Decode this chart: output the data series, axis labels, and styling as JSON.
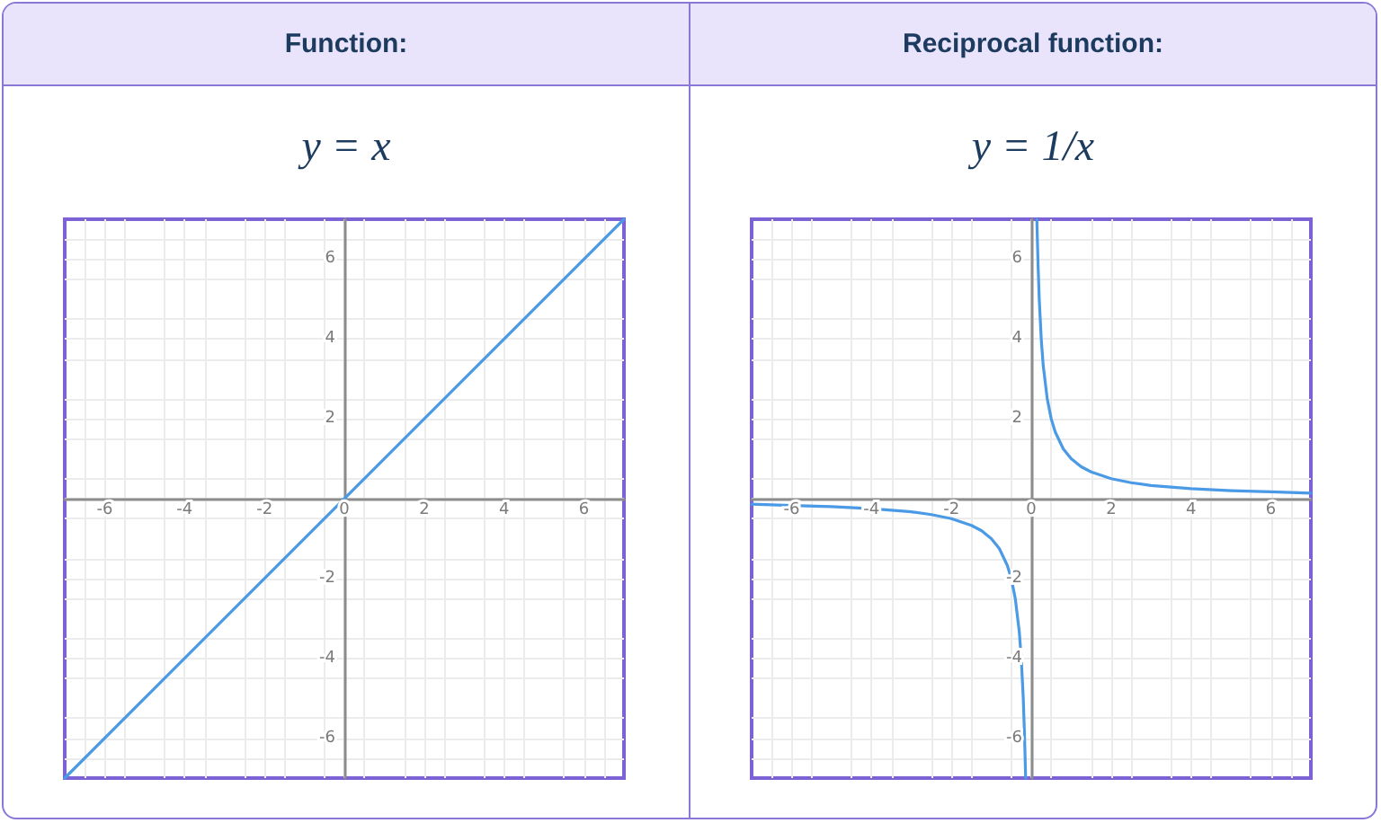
{
  "chart_data": [
    {
      "type": "line",
      "title": "Function:",
      "subtitle": "y = x",
      "x": [
        -7,
        7
      ],
      "values": [
        -7,
        7
      ],
      "color": "#4a9ae6",
      "marker": "none",
      "xlim": [
        -7,
        7
      ],
      "ylim": [
        -7,
        7
      ],
      "xticks": [
        -6,
        -4,
        -2,
        0,
        2,
        4,
        6
      ],
      "yticks": [
        -6,
        -4,
        -2,
        2,
        4,
        6
      ],
      "grid": true
    },
    {
      "type": "line",
      "title": "Reciprocal function:",
      "subtitle": "y = 1/x",
      "x": [
        -7,
        -6,
        -5,
        -4,
        -3,
        -2.5,
        -2,
        -1.5,
        -1.25,
        -1,
        -0.8,
        -0.6,
        -0.5,
        -0.4,
        -0.3,
        -0.25,
        -0.2,
        -0.17,
        -0.14,
        0,
        0.14,
        0.17,
        0.2,
        0.25,
        0.3,
        0.4,
        0.5,
        0.6,
        0.8,
        1,
        1.25,
        1.5,
        2,
        2.5,
        3,
        4,
        5,
        6,
        7
      ],
      "values": [
        -0.14,
        -0.17,
        -0.2,
        -0.25,
        -0.33,
        -0.4,
        -0.5,
        -0.67,
        -0.8,
        -1,
        -1.25,
        -1.67,
        -2,
        -2.5,
        -3.33,
        -4,
        -5,
        -5.88,
        -7,
        null,
        7,
        5.88,
        5,
        4,
        3.33,
        2.5,
        2,
        1.67,
        1.25,
        1,
        0.8,
        0.67,
        0.5,
        0.4,
        0.33,
        0.25,
        0.2,
        0.17,
        0.14
      ],
      "color": "#4a9ae6",
      "marker": "none",
      "xlim": [
        -7,
        7
      ],
      "ylim": [
        -7,
        7
      ],
      "xticks": [
        -6,
        -4,
        -2,
        0,
        2,
        4,
        6
      ],
      "yticks": [
        -6,
        -4,
        -2,
        2,
        4,
        6
      ],
      "grid": true
    }
  ]
}
